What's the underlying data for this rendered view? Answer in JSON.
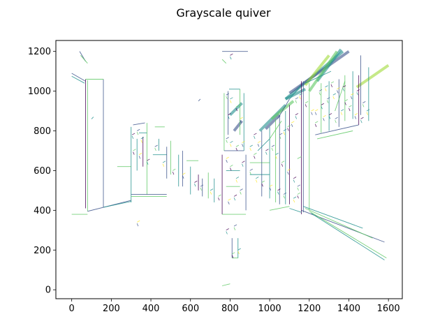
{
  "chart_data": {
    "type": "quiver",
    "title": "Grayscale quiver",
    "xlabel": "",
    "ylabel": "",
    "xlim": [
      -80,
      1670
    ],
    "ylim": [
      -45,
      1255
    ],
    "x_ticks": [
      0,
      200,
      400,
      600,
      800,
      1000,
      1200,
      1400,
      1600
    ],
    "y_ticks": [
      0,
      200,
      400,
      600,
      800,
      1000,
      1200
    ],
    "grid": false,
    "colormap": [
      "#440154",
      "#3b528b",
      "#21908d",
      "#5dc863",
      "#fde725"
    ],
    "segments": [
      [
        0,
        1090,
        70,
        1050,
        "#3b528b"
      ],
      [
        0,
        1075,
        65,
        1040,
        "#21908d"
      ],
      [
        70,
        1060,
        70,
        410,
        "#440154"
      ],
      [
        80,
        1055,
        80,
        395,
        "#5dc863"
      ],
      [
        160,
        1060,
        160,
        415,
        "#3b528b"
      ],
      [
        70,
        1060,
        160,
        1060,
        "#5dc863"
      ],
      [
        80,
        395,
        300,
        450,
        "#3b528b"
      ],
      [
        160,
        415,
        300,
        445,
        "#21908d"
      ],
      [
        0,
        380,
        80,
        380,
        "#5dc863"
      ],
      [
        40,
        1200,
        70,
        1150,
        "#3b528b"
      ],
      [
        45,
        1180,
        80,
        1140,
        "#5dc863"
      ],
      [
        300,
        820,
        300,
        440,
        "#21908d"
      ],
      [
        310,
        830,
        370,
        840,
        "#3b528b"
      ],
      [
        380,
        840,
        380,
        480,
        "#5dc863"
      ],
      [
        300,
        480,
        480,
        480,
        "#3b528b"
      ],
      [
        300,
        470,
        480,
        470,
        "#5dc863"
      ],
      [
        330,
        760,
        330,
        600,
        "#21908d"
      ],
      [
        360,
        770,
        360,
        620,
        "#440154"
      ],
      [
        410,
        680,
        480,
        680,
        "#21908d"
      ],
      [
        480,
        720,
        480,
        560,
        "#3b528b"
      ],
      [
        500,
        750,
        500,
        580,
        "#5dc863"
      ],
      [
        540,
        680,
        540,
        520,
        "#21908d"
      ],
      [
        560,
        700,
        560,
        520,
        "#3b528b"
      ],
      [
        580,
        650,
        640,
        650,
        "#5dc863"
      ],
      [
        600,
        620,
        600,
        480,
        "#21908d"
      ],
      [
        640,
        580,
        640,
        500,
        "#440154"
      ],
      [
        660,
        560,
        660,
        470,
        "#3b528b"
      ],
      [
        690,
        590,
        690,
        460,
        "#5dc863"
      ],
      [
        720,
        560,
        720,
        440,
        "#21908d"
      ],
      [
        420,
        820,
        470,
        820,
        "#5dc863"
      ],
      [
        440,
        760,
        440,
        700,
        "#21908d"
      ],
      [
        760,
        1200,
        890,
        1200,
        "#3b528b"
      ],
      [
        790,
        1000,
        790,
        780,
        "#3b528b"
      ],
      [
        850,
        1010,
        850,
        780,
        "#5dc863"
      ],
      [
        795,
        1010,
        850,
        1010,
        "#21908d"
      ],
      [
        770,
        990,
        770,
        700,
        "#5dc863"
      ],
      [
        870,
        990,
        870,
        700,
        "#21908d"
      ],
      [
        770,
        700,
        870,
        700,
        "#3b528b"
      ],
      [
        760,
        680,
        760,
        380,
        "#440154"
      ],
      [
        880,
        680,
        880,
        400,
        "#3b528b"
      ],
      [
        760,
        380,
        880,
        380,
        "#5dc863"
      ],
      [
        780,
        600,
        850,
        600,
        "#21908d"
      ],
      [
        780,
        520,
        850,
        520,
        "#5dc863"
      ],
      [
        810,
        260,
        810,
        160,
        "#3b528b"
      ],
      [
        840,
        260,
        840,
        160,
        "#21908d"
      ],
      [
        810,
        160,
        840,
        160,
        "#5dc863"
      ],
      [
        760,
        20,
        800,
        30,
        "#5dc863"
      ],
      [
        900,
        640,
        1000,
        640,
        "#5dc863"
      ],
      [
        900,
        580,
        1000,
        580,
        "#21908d"
      ],
      [
        960,
        800,
        960,
        470,
        "#3b528b"
      ],
      [
        1000,
        820,
        1000,
        460,
        "#21908d"
      ],
      [
        1030,
        860,
        1030,
        440,
        "#5dc863"
      ],
      [
        1050,
        880,
        1050,
        430,
        "#3b528b"
      ],
      [
        1080,
        900,
        1080,
        430,
        "#21908d"
      ],
      [
        1100,
        930,
        1100,
        430,
        "#440154"
      ],
      [
        940,
        700,
        1000,
        760,
        "#21908d"
      ],
      [
        1000,
        760,
        1060,
        850,
        "#5dc863"
      ],
      [
        1040,
        860,
        1100,
        960,
        "#3b528b"
      ],
      [
        1100,
        960,
        1160,
        1030,
        "#21908d"
      ],
      [
        1160,
        1050,
        1160,
        380,
        "#440154"
      ],
      [
        1170,
        1050,
        1170,
        390,
        "#3b528b"
      ],
      [
        1200,
        1040,
        1200,
        400,
        "#5dc863"
      ],
      [
        1180,
        1040,
        1310,
        1100,
        "#21908d"
      ],
      [
        1260,
        1040,
        1260,
        790,
        "#5dc863"
      ],
      [
        1300,
        1050,
        1300,
        800,
        "#21908d"
      ],
      [
        1350,
        1060,
        1350,
        820,
        "#3b528b"
      ],
      [
        1380,
        1080,
        1380,
        850,
        "#5dc863"
      ],
      [
        1420,
        1100,
        1420,
        860,
        "#21908d"
      ],
      [
        1450,
        1080,
        1450,
        830,
        "#440154"
      ],
      [
        1230,
        780,
        1450,
        830,
        "#3b528b"
      ],
      [
        1240,
        760,
        1420,
        800,
        "#5dc863"
      ],
      [
        1460,
        1180,
        1460,
        880,
        "#3b528b"
      ],
      [
        1500,
        1120,
        1500,
        850,
        "#21908d"
      ],
      [
        1160,
        400,
        1580,
        240,
        "#3b528b"
      ],
      [
        1200,
        395,
        1590,
        160,
        "#5dc863"
      ],
      [
        1210,
        385,
        1580,
        150,
        "#21908d"
      ],
      [
        1170,
        420,
        1470,
        310,
        "#21908d"
      ],
      [
        1180,
        410,
        1520,
        260,
        "#5dc863"
      ],
      [
        1330,
        900,
        1380,
        1050,
        "#5dc863"
      ],
      [
        1000,
        400,
        1100,
        420,
        "#5dc863"
      ],
      [
        1100,
        410,
        1160,
        390,
        "#21908d"
      ],
      [
        640,
        950,
        650,
        960,
        "#3b528b"
      ],
      [
        760,
        1160,
        780,
        1140,
        "#5dc863"
      ],
      [
        340,
        790,
        380,
        790,
        "#21908d"
      ],
      [
        230,
        620,
        300,
        620,
        "#5dc863"
      ],
      [
        100,
        860,
        110,
        870,
        "#21908d"
      ],
      [
        1140,
        660,
        1160,
        670,
        "#5dc863"
      ]
    ],
    "thick_segments": [
      [
        1080,
        960,
        1370,
        1200,
        "#21908d"
      ],
      [
        1100,
        990,
        1400,
        1200,
        "#3b528b"
      ],
      [
        1240,
        1050,
        1360,
        1210,
        "#21908d"
      ],
      [
        1180,
        1030,
        1300,
        1180,
        "#a0da39"
      ],
      [
        1200,
        1000,
        1340,
        1200,
        "#5dc863"
      ],
      [
        1440,
        1020,
        1600,
        1130,
        "#a0da39"
      ],
      [
        950,
        800,
        1080,
        930,
        "#21908d"
      ],
      [
        980,
        810,
        1050,
        880,
        "#3b528b"
      ],
      [
        1010,
        860,
        1120,
        950,
        "#5dc863"
      ],
      [
        1080,
        960,
        1180,
        1010,
        "#21908d"
      ],
      [
        800,
        880,
        860,
        940,
        "#21908d"
      ],
      [
        820,
        800,
        860,
        850,
        "#3b528b"
      ]
    ],
    "marks": [
      [
        305,
        780
      ],
      [
        330,
        800
      ],
      [
        350,
        760
      ],
      [
        310,
        700
      ],
      [
        340,
        680
      ],
      [
        380,
        650
      ],
      [
        420,
        720
      ],
      [
        460,
        640
      ],
      [
        510,
        600
      ],
      [
        560,
        580
      ],
      [
        620,
        540
      ],
      [
        650,
        520
      ],
      [
        700,
        500
      ],
      [
        740,
        470
      ],
      [
        790,
        450
      ],
      [
        820,
        470
      ],
      [
        850,
        500
      ],
      [
        830,
        560
      ],
      [
        800,
        620
      ],
      [
        780,
        660
      ],
      [
        860,
        640
      ],
      [
        900,
        600
      ],
      [
        930,
        560
      ],
      [
        960,
        540
      ],
      [
        1000,
        520
      ],
      [
        1040,
        500
      ],
      [
        1070,
        480
      ],
      [
        1120,
        460
      ],
      [
        1140,
        480
      ],
      [
        1230,
        900
      ],
      [
        1260,
        930
      ],
      [
        1290,
        960
      ],
      [
        1320,
        980
      ],
      [
        1380,
        950
      ],
      [
        1410,
        980
      ],
      [
        1440,
        1000
      ],
      [
        1470,
        940
      ],
      [
        1490,
        900
      ],
      [
        1230,
        840
      ],
      [
        1270,
        870
      ],
      [
        1300,
        880
      ],
      [
        1330,
        860
      ],
      [
        1360,
        900
      ],
      [
        1400,
        920
      ],
      [
        1430,
        880
      ],
      [
        1460,
        860
      ],
      [
        1250,
        1000
      ],
      [
        1280,
        1020
      ],
      [
        1310,
        1040
      ],
      [
        1340,
        1010
      ],
      [
        1370,
        1020
      ],
      [
        1050,
        780
      ],
      [
        1070,
        800
      ],
      [
        1090,
        820
      ],
      [
        1110,
        840
      ],
      [
        1130,
        880
      ],
      [
        1130,
        960
      ],
      [
        1150,
        980
      ],
      [
        1180,
        940
      ],
      [
        1210,
        900
      ],
      [
        980,
        700
      ],
      [
        1010,
        720
      ],
      [
        1030,
        680
      ],
      [
        1060,
        640
      ],
      [
        1090,
        600
      ],
      [
        1120,
        560
      ],
      [
        1140,
        520
      ],
      [
        900,
        720
      ],
      [
        920,
        680
      ],
      [
        940,
        740
      ],
      [
        920,
        780
      ],
      [
        780,
        980
      ],
      [
        800,
        960
      ],
      [
        830,
        920
      ],
      [
        850,
        860
      ],
      [
        790,
        880
      ],
      [
        780,
        760
      ],
      [
        800,
        740
      ],
      [
        830,
        720
      ],
      [
        860,
        740
      ],
      [
        780,
        300
      ],
      [
        820,
        320
      ],
      [
        840,
        200
      ],
      [
        810,
        180
      ],
      [
        330,
        340
      ],
      [
        800,
        1180
      ]
    ]
  }
}
